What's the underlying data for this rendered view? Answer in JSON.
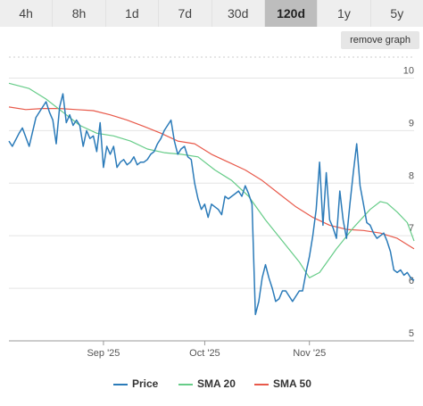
{
  "range_tabs": {
    "items": [
      "4h",
      "8h",
      "1d",
      "7d",
      "30d",
      "120d",
      "1y",
      "5y"
    ],
    "active_label": "120d"
  },
  "controls": {
    "remove_graph_label": "remove graph"
  },
  "chart_data": {
    "type": "line",
    "title": "",
    "xlabel": "",
    "ylabel": "",
    "ylim": [
      5,
      10.5
    ],
    "y_ticks": [
      "5",
      "6",
      "7",
      "8",
      "9",
      "10"
    ],
    "x_ticks": [
      {
        "label": "Sep '25",
        "date": "2025-09-01"
      },
      {
        "label": "Oct '25",
        "date": "2025-10-01"
      },
      {
        "label": "Nov '25",
        "date": "2025-11-01"
      }
    ],
    "xlim": [
      "2025-08-04",
      "2025-12-02"
    ],
    "grid": true,
    "legend_position": "bottom-center",
    "series": [
      {
        "name": "Price",
        "color": "#2b7bb9",
        "points": [
          [
            "2025-08-04",
            8.8
          ],
          [
            "2025-08-05",
            8.7
          ],
          [
            "2025-08-07",
            8.95
          ],
          [
            "2025-08-08",
            9.05
          ],
          [
            "2025-08-10",
            8.7
          ],
          [
            "2025-08-12",
            9.25
          ],
          [
            "2025-08-14",
            9.45
          ],
          [
            "2025-08-15",
            9.55
          ],
          [
            "2025-08-16",
            9.35
          ],
          [
            "2025-08-17",
            9.2
          ],
          [
            "2025-08-18",
            8.75
          ],
          [
            "2025-08-19",
            9.45
          ],
          [
            "2025-08-20",
            9.7
          ],
          [
            "2025-08-21",
            9.15
          ],
          [
            "2025-08-22",
            9.3
          ],
          [
            "2025-08-23",
            9.1
          ],
          [
            "2025-08-24",
            9.2
          ],
          [
            "2025-08-25",
            9.1
          ],
          [
            "2025-08-26",
            8.7
          ],
          [
            "2025-08-27",
            9.0
          ],
          [
            "2025-08-28",
            8.85
          ],
          [
            "2025-08-29",
            8.9
          ],
          [
            "2025-08-30",
            8.6
          ],
          [
            "2025-08-31",
            9.15
          ],
          [
            "2025-09-01",
            8.3
          ],
          [
            "2025-09-02",
            8.7
          ],
          [
            "2025-09-03",
            8.55
          ],
          [
            "2025-09-04",
            8.7
          ],
          [
            "2025-09-05",
            8.3
          ],
          [
            "2025-09-06",
            8.4
          ],
          [
            "2025-09-07",
            8.45
          ],
          [
            "2025-09-08",
            8.35
          ],
          [
            "2025-09-09",
            8.4
          ],
          [
            "2025-09-10",
            8.5
          ],
          [
            "2025-09-11",
            8.35
          ],
          [
            "2025-09-12",
            8.4
          ],
          [
            "2025-09-13",
            8.4
          ],
          [
            "2025-09-14",
            8.45
          ],
          [
            "2025-09-15",
            8.55
          ],
          [
            "2025-09-16",
            8.6
          ],
          [
            "2025-09-17",
            8.75
          ],
          [
            "2025-09-18",
            8.85
          ],
          [
            "2025-09-19",
            9.0
          ],
          [
            "2025-09-20",
            9.1
          ],
          [
            "2025-09-21",
            9.2
          ],
          [
            "2025-09-22",
            8.8
          ],
          [
            "2025-09-23",
            8.55
          ],
          [
            "2025-09-24",
            8.65
          ],
          [
            "2025-09-25",
            8.7
          ],
          [
            "2025-09-26",
            8.5
          ],
          [
            "2025-09-27",
            8.45
          ],
          [
            "2025-09-28",
            8.0
          ],
          [
            "2025-09-29",
            7.7
          ],
          [
            "2025-09-30",
            7.5
          ],
          [
            "2025-10-01",
            7.6
          ],
          [
            "2025-10-02",
            7.35
          ],
          [
            "2025-10-03",
            7.6
          ],
          [
            "2025-10-04",
            7.55
          ],
          [
            "2025-10-05",
            7.5
          ],
          [
            "2025-10-06",
            7.4
          ],
          [
            "2025-10-07",
            7.75
          ],
          [
            "2025-10-08",
            7.7
          ],
          [
            "2025-10-09",
            7.75
          ],
          [
            "2025-10-10",
            7.8
          ],
          [
            "2025-10-11",
            7.85
          ],
          [
            "2025-10-12",
            7.75
          ],
          [
            "2025-10-13",
            7.95
          ],
          [
            "2025-10-14",
            7.8
          ],
          [
            "2025-10-15",
            7.6
          ],
          [
            "2025-10-16",
            5.5
          ],
          [
            "2025-10-17",
            5.75
          ],
          [
            "2025-10-18",
            6.2
          ],
          [
            "2025-10-19",
            6.45
          ],
          [
            "2025-10-20",
            6.2
          ],
          [
            "2025-10-21",
            6.0
          ],
          [
            "2025-10-22",
            5.75
          ],
          [
            "2025-10-23",
            5.8
          ],
          [
            "2025-10-24",
            5.95
          ],
          [
            "2025-10-25",
            5.95
          ],
          [
            "2025-10-26",
            5.85
          ],
          [
            "2025-10-27",
            5.75
          ],
          [
            "2025-10-28",
            5.85
          ],
          [
            "2025-10-29",
            5.95
          ],
          [
            "2025-10-30",
            5.95
          ],
          [
            "2025-10-31",
            6.3
          ],
          [
            "2025-11-01",
            6.6
          ],
          [
            "2025-11-02",
            7.0
          ],
          [
            "2025-11-03",
            7.5
          ],
          [
            "2025-11-04",
            8.4
          ],
          [
            "2025-11-05",
            7.2
          ],
          [
            "2025-11-06",
            8.2
          ],
          [
            "2025-11-07",
            7.3
          ],
          [
            "2025-11-08",
            7.15
          ],
          [
            "2025-11-09",
            6.95
          ],
          [
            "2025-11-10",
            7.85
          ],
          [
            "2025-11-11",
            7.3
          ],
          [
            "2025-11-12",
            6.95
          ],
          [
            "2025-11-13",
            7.6
          ],
          [
            "2025-11-14",
            8.2
          ],
          [
            "2025-11-15",
            8.75
          ],
          [
            "2025-11-16",
            7.95
          ],
          [
            "2025-11-17",
            7.6
          ],
          [
            "2025-11-18",
            7.25
          ],
          [
            "2025-11-19",
            7.2
          ],
          [
            "2025-11-20",
            7.05
          ],
          [
            "2025-11-21",
            6.95
          ],
          [
            "2025-11-22",
            7.0
          ],
          [
            "2025-11-23",
            7.05
          ],
          [
            "2025-11-24",
            6.9
          ],
          [
            "2025-11-25",
            6.7
          ],
          [
            "2025-11-26",
            6.35
          ],
          [
            "2025-11-27",
            6.3
          ],
          [
            "2025-11-28",
            6.35
          ],
          [
            "2025-11-29",
            6.25
          ],
          [
            "2025-11-30",
            6.3
          ],
          [
            "2025-12-01",
            6.2
          ],
          [
            "2025-12-02",
            6.15
          ]
        ]
      },
      {
        "name": "SMA 20",
        "color": "#66cc88",
        "points": [
          [
            "2025-08-04",
            9.9
          ],
          [
            "2025-08-10",
            9.8
          ],
          [
            "2025-08-15",
            9.6
          ],
          [
            "2025-08-20",
            9.35
          ],
          [
            "2025-08-25",
            9.1
          ],
          [
            "2025-08-30",
            8.95
          ],
          [
            "2025-09-04",
            8.9
          ],
          [
            "2025-09-09",
            8.8
          ],
          [
            "2025-09-14",
            8.65
          ],
          [
            "2025-09-19",
            8.58
          ],
          [
            "2025-09-24",
            8.55
          ],
          [
            "2025-09-29",
            8.5
          ],
          [
            "2025-10-04",
            8.25
          ],
          [
            "2025-10-09",
            8.05
          ],
          [
            "2025-10-14",
            7.75
          ],
          [
            "2025-10-19",
            7.3
          ],
          [
            "2025-10-24",
            6.9
          ],
          [
            "2025-10-29",
            6.5
          ],
          [
            "2025-11-01",
            6.2
          ],
          [
            "2025-11-04",
            6.3
          ],
          [
            "2025-11-09",
            6.75
          ],
          [
            "2025-11-14",
            7.15
          ],
          [
            "2025-11-19",
            7.5
          ],
          [
            "2025-11-22",
            7.65
          ],
          [
            "2025-11-24",
            7.62
          ],
          [
            "2025-11-27",
            7.45
          ],
          [
            "2025-11-30",
            7.25
          ],
          [
            "2025-12-02",
            6.9
          ]
        ]
      },
      {
        "name": "SMA 50",
        "color": "#e8594a",
        "points": [
          [
            "2025-08-04",
            9.45
          ],
          [
            "2025-08-09",
            9.4
          ],
          [
            "2025-08-14",
            9.42
          ],
          [
            "2025-08-19",
            9.42
          ],
          [
            "2025-08-24",
            9.4
          ],
          [
            "2025-08-29",
            9.38
          ],
          [
            "2025-09-03",
            9.3
          ],
          [
            "2025-09-08",
            9.2
          ],
          [
            "2025-09-13",
            9.08
          ],
          [
            "2025-09-18",
            8.95
          ],
          [
            "2025-09-23",
            8.8
          ],
          [
            "2025-09-28",
            8.75
          ],
          [
            "2025-10-03",
            8.55
          ],
          [
            "2025-10-08",
            8.4
          ],
          [
            "2025-10-13",
            8.25
          ],
          [
            "2025-10-18",
            8.05
          ],
          [
            "2025-10-23",
            7.8
          ],
          [
            "2025-10-28",
            7.55
          ],
          [
            "2025-11-02",
            7.35
          ],
          [
            "2025-11-07",
            7.2
          ],
          [
            "2025-11-12",
            7.12
          ],
          [
            "2025-11-17",
            7.1
          ],
          [
            "2025-11-22",
            7.05
          ],
          [
            "2025-11-27",
            6.95
          ],
          [
            "2025-12-02",
            6.75
          ]
        ]
      }
    ]
  }
}
